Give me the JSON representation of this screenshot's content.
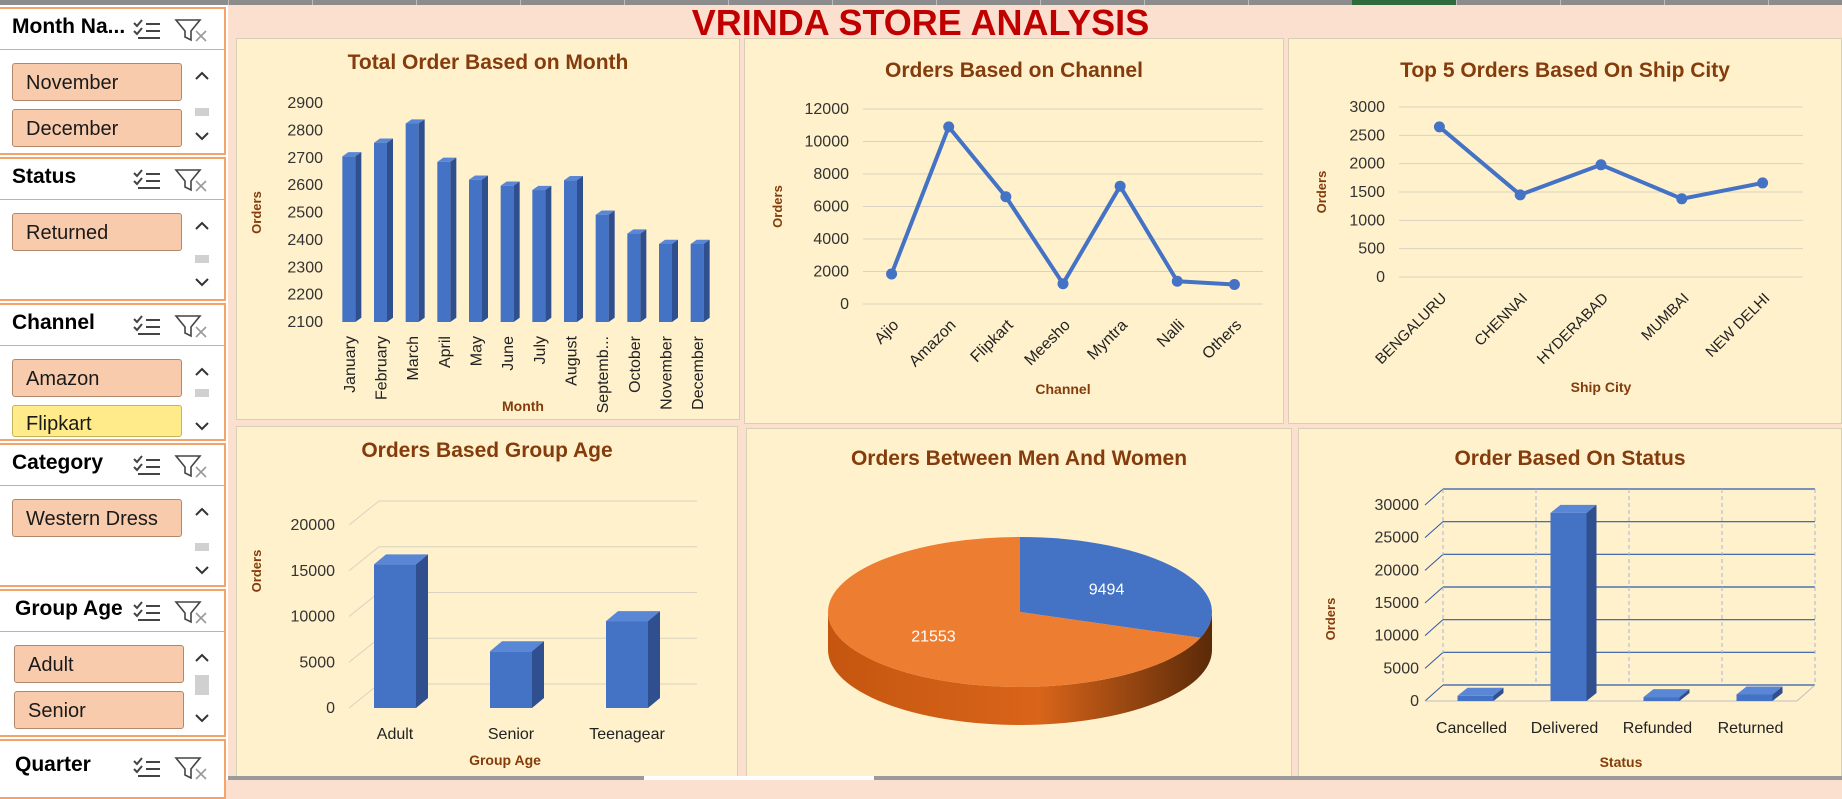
{
  "dashboard_title": "VRINDA STORE ANALYSIS",
  "colors": {
    "bar": "#4472c4",
    "bar_dark": "#2f4f8f",
    "orange": "#ed7d31",
    "title": "#843c0c",
    "panel": "#fff1cc",
    "slicer_item": "#f8cbad",
    "header_red": "#c00000"
  },
  "slicers": [
    {
      "title": "Month Na...",
      "items": [
        "November",
        "December"
      ]
    },
    {
      "title": "Status",
      "items": [
        "Returned"
      ]
    },
    {
      "title": "Channel",
      "items": [
        "Amazon",
        "Flipkart"
      ]
    },
    {
      "title": "Category",
      "items": [
        "Western Dress"
      ]
    },
    {
      "title": "Group Age",
      "items": [
        "Adult",
        "Senior"
      ]
    },
    {
      "title": "Quarter",
      "items": []
    }
  ],
  "chart_data": [
    {
      "id": "month",
      "type": "bar",
      "title": "Total Order Based on Month",
      "xlabel": "Month",
      "ylabel": "Orders",
      "categories": [
        "January",
        "February",
        "March",
        "April",
        "May",
        "June",
        "July",
        "August",
        "Septemb...",
        "October",
        "November",
        "December"
      ],
      "values": [
        2705,
        2755,
        2825,
        2685,
        2620,
        2598,
        2582,
        2618,
        2492,
        2423,
        2385,
        2385
      ],
      "ylim": [
        2100,
        2900
      ],
      "yticks": [
        2100,
        2200,
        2300,
        2400,
        2500,
        2600,
        2700,
        2800,
        2900
      ],
      "grid": false
    },
    {
      "id": "channel",
      "type": "line",
      "title": "Orders Based on Channel",
      "xlabel": "Channel",
      "ylabel": "Orders",
      "categories": [
        "Ajio",
        "Amazon",
        "Flipkart",
        "Meesho",
        "Myntra",
        "Nalli",
        "Others"
      ],
      "values": [
        1850,
        10900,
        6600,
        1250,
        7250,
        1400,
        1200
      ],
      "ylim": [
        0,
        12000
      ],
      "yticks": [
        0,
        2000,
        4000,
        6000,
        8000,
        10000,
        12000
      ],
      "grid": true
    },
    {
      "id": "city",
      "type": "line",
      "title": "Top 5 Orders Based On Ship City",
      "xlabel": "Ship City",
      "ylabel": "Orders",
      "categories": [
        "BENGALURU",
        "CHENNAI",
        "HYDERABAD",
        "MUMBAI",
        "NEW DELHI"
      ],
      "values": [
        2650,
        1450,
        1980,
        1380,
        1660
      ],
      "ylim": [
        0,
        3000
      ],
      "yticks": [
        0,
        500,
        1000,
        1500,
        2000,
        2500,
        3000
      ],
      "grid": true
    },
    {
      "id": "age",
      "type": "bar",
      "title": "Orders Based Group Age",
      "xlabel": "Group Age",
      "ylabel": "Orders",
      "categories": [
        "Adult",
        "Senior",
        "Teenagear"
      ],
      "values": [
        15700,
        6200,
        9500
      ],
      "ylim": [
        0,
        20000
      ],
      "yticks": [
        0,
        5000,
        10000,
        15000,
        20000
      ],
      "grid": true
    },
    {
      "id": "gender",
      "type": "pie",
      "title": "Orders Between Men And Women",
      "slices": [
        {
          "value": 9494,
          "label": "9494",
          "color": "#4472c4"
        },
        {
          "value": 21553,
          "label": "21553",
          "color": "#ed7d31"
        }
      ]
    },
    {
      "id": "status",
      "type": "bar",
      "title": "Order Based On Status",
      "xlabel": "Status",
      "ylabel": "Orders",
      "categories": [
        "Cancelled",
        "Delivered",
        "Refunded",
        "Returned"
      ],
      "values": [
        800,
        28800,
        600,
        1000
      ],
      "ylim": [
        0,
        30000
      ],
      "yticks": [
        0,
        5000,
        10000,
        15000,
        20000,
        25000,
        30000
      ],
      "grid": true
    }
  ]
}
